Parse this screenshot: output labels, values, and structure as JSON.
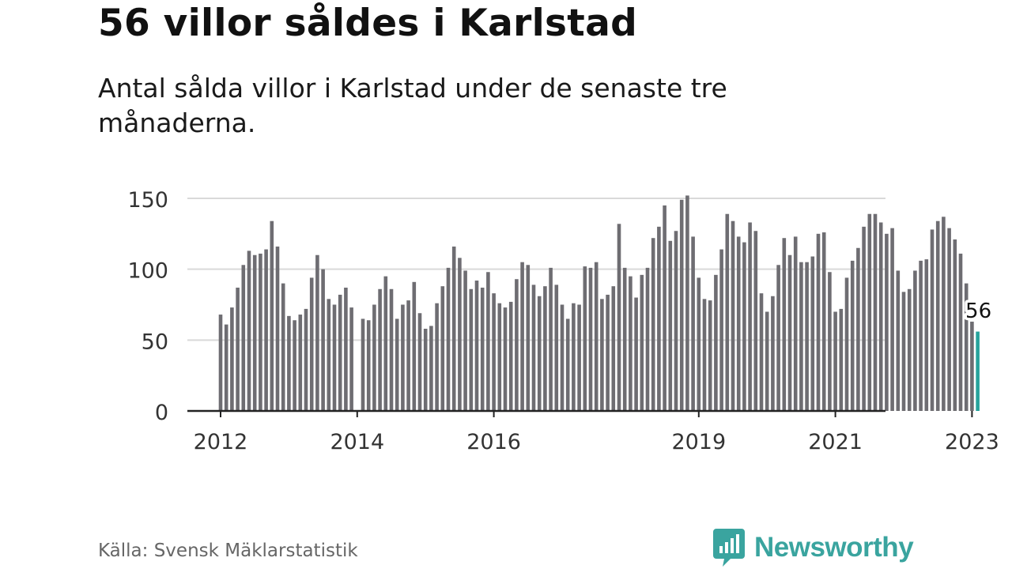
{
  "title": "56 villor såldes i Karlstad",
  "subtitle": "Antal sålda villor i Karlstad under de senaste tre månaderna.",
  "source": "Källa: Svensk Mäklarstatistik",
  "brand": {
    "name": "Newsworthy",
    "icon": "newsworthy-logo-icon",
    "color": "#3aa49f"
  },
  "chart_data": {
    "type": "bar",
    "title": "56 villor såldes i Karlstad",
    "ylim": [
      0,
      150
    ],
    "yticks": [
      0,
      50,
      100,
      150
    ],
    "xticks": [
      {
        "label": "2012",
        "index": 0
      },
      {
        "label": "2014",
        "index": 24
      },
      {
        "label": "2016",
        "index": 48
      },
      {
        "label": "2019",
        "index": 84
      },
      {
        "label": "2021",
        "index": 108
      },
      {
        "label": "2023",
        "index": 132
      }
    ],
    "grid": true,
    "bar_color": "#6e6d72",
    "highlight_color": "#27a39c",
    "highlight_label": "56",
    "values": [
      68,
      61,
      73,
      87,
      103,
      113,
      110,
      111,
      114,
      134,
      116,
      90,
      67,
      64,
      68,
      72,
      94,
      110,
      100,
      79,
      75,
      82,
      87,
      73,
      null,
      65,
      64,
      75,
      86,
      95,
      86,
      65,
      75,
      78,
      91,
      69,
      58,
      60,
      76,
      88,
      101,
      116,
      108,
      99,
      86,
      92,
      87,
      98,
      83,
      76,
      73,
      77,
      93,
      105,
      103,
      89,
      81,
      88,
      101,
      89,
      75,
      65,
      76,
      75,
      102,
      101,
      105,
      79,
      82,
      88,
      132,
      101,
      95,
      80,
      96,
      101,
      122,
      130,
      145,
      120,
      127,
      149,
      152,
      123,
      94,
      79,
      78,
      96,
      114,
      139,
      134,
      123,
      119,
      133,
      127,
      83,
      70,
      81,
      103,
      122,
      110,
      123,
      105,
      105,
      109,
      125,
      126,
      98,
      70,
      72,
      94,
      106,
      115,
      130,
      139,
      139,
      133,
      125,
      129,
      99,
      84,
      86,
      99,
      106,
      107,
      128,
      134,
      137,
      129,
      121,
      111,
      90,
      63,
      56
    ]
  }
}
